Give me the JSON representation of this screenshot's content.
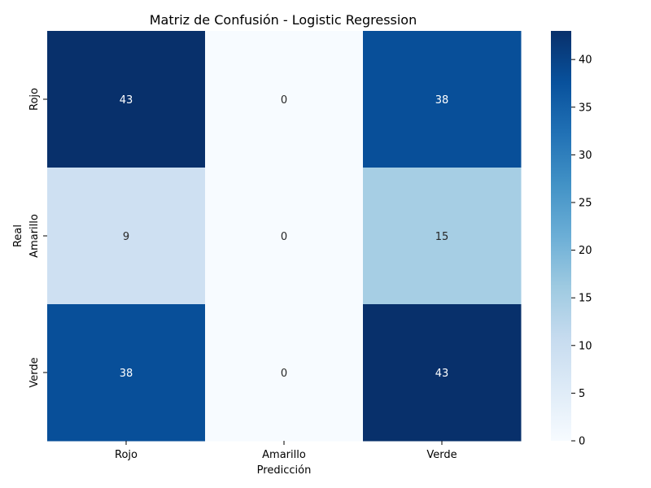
{
  "chart_data": {
    "type": "heatmap",
    "title": "Matriz de Confusión - Logistic Regression",
    "xlabel": "Predicción",
    "ylabel": "Real",
    "x_categories": [
      "Rojo",
      "Amarillo",
      "Verde"
    ],
    "y_categories": [
      "Rojo",
      "Amarillo",
      "Verde"
    ],
    "values": [
      [
        43,
        0,
        38
      ],
      [
        9,
        0,
        15
      ],
      [
        38,
        0,
        43
      ]
    ],
    "colormap": "Blues",
    "color_range": [
      0,
      43
    ],
    "colorbar_ticks": [
      0,
      5,
      10,
      15,
      20,
      25,
      30,
      35,
      40
    ]
  }
}
